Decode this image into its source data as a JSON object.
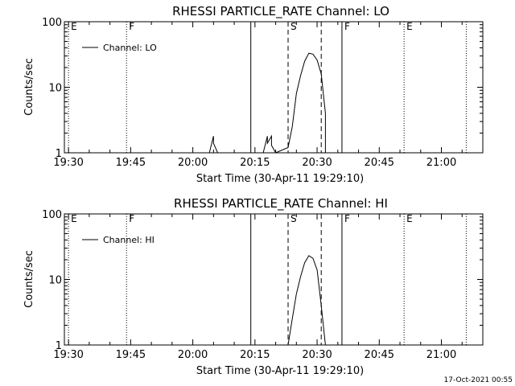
{
  "footer": {
    "timestamp": "17-Oct-2021 00:55"
  },
  "chart_data": [
    {
      "type": "line",
      "title": "RHESSI PARTICLE_RATE Channel: LO",
      "xlabel": "Start Time (30-Apr-11 19:29:10)",
      "ylabel": "Counts/sec",
      "yscale": "log",
      "ylim": [
        1,
        100
      ],
      "xlim": [
        "19:29",
        "21:10"
      ],
      "x_ticks": [
        "19:30",
        "19:45",
        "20:00",
        "20:15",
        "20:30",
        "20:45",
        "21:00"
      ],
      "y_ticks": [
        "1",
        "10",
        "100"
      ],
      "legend": {
        "position": "top-left",
        "entries": [
          "Channel: LO"
        ]
      },
      "event_markers": [
        {
          "time": "19:30",
          "label": "E",
          "style": "dotted"
        },
        {
          "time": "19:44",
          "label": "F",
          "style": "dotted"
        },
        {
          "time": "20:14",
          "label": "",
          "style": "solid"
        },
        {
          "time": "20:23",
          "label": "S",
          "style": "dashed"
        },
        {
          "time": "20:31",
          "label": "",
          "style": "dashed"
        },
        {
          "time": "20:36",
          "label": "F",
          "style": "solid"
        },
        {
          "time": "20:51",
          "label": "E",
          "style": "dotted"
        },
        {
          "time": "21:06",
          "label": "",
          "style": "dotted"
        }
      ],
      "series": [
        {
          "name": "Channel: LO",
          "x": [
            "20:04",
            "20:05",
            "20:05",
            "20:06",
            "20:17",
            "20:18",
            "20:18",
            "20:19",
            "20:19",
            "20:20",
            "20:20",
            "20:23",
            "20:24",
            "20:25",
            "20:26",
            "20:27",
            "20:28",
            "20:29",
            "20:30",
            "20:31",
            "20:32",
            "20:32"
          ],
          "y": [
            1,
            1.8,
            1.4,
            1,
            1,
            1.8,
            1.4,
            1.8,
            1.3,
            1,
            1,
            1.2,
            2.5,
            8,
            15,
            25,
            33,
            32,
            26,
            16,
            4,
            1
          ]
        }
      ]
    },
    {
      "type": "line",
      "title": "RHESSI PARTICLE_RATE Channel: HI",
      "xlabel": "Start Time (30-Apr-11 19:29:10)",
      "ylabel": "Counts/sec",
      "yscale": "log",
      "ylim": [
        1,
        100
      ],
      "xlim": [
        "19:29",
        "21:10"
      ],
      "x_ticks": [
        "19:30",
        "19:45",
        "20:00",
        "20:15",
        "20:30",
        "20:45",
        "21:00"
      ],
      "y_ticks": [
        "1",
        "10",
        "100"
      ],
      "legend": {
        "position": "top-left",
        "entries": [
          "Channel: HI"
        ]
      },
      "event_markers": [
        {
          "time": "19:30",
          "label": "E",
          "style": "dotted"
        },
        {
          "time": "19:44",
          "label": "F",
          "style": "dotted"
        },
        {
          "time": "20:14",
          "label": "",
          "style": "solid"
        },
        {
          "time": "20:23",
          "label": "S",
          "style": "dashed"
        },
        {
          "time": "20:31",
          "label": "",
          "style": "dashed"
        },
        {
          "time": "20:36",
          "label": "F",
          "style": "solid"
        },
        {
          "time": "20:51",
          "label": "E",
          "style": "dotted"
        },
        {
          "time": "21:06",
          "label": "",
          "style": "dotted"
        }
      ],
      "series": [
        {
          "name": "Channel: HI",
          "x": [
            "20:23",
            "20:24",
            "20:25",
            "20:26",
            "20:27",
            "20:28",
            "20:29",
            "20:30",
            "20:31",
            "20:32"
          ],
          "y": [
            1,
            2.5,
            6,
            11,
            18,
            23,
            21,
            14,
            4,
            1
          ]
        }
      ]
    }
  ]
}
